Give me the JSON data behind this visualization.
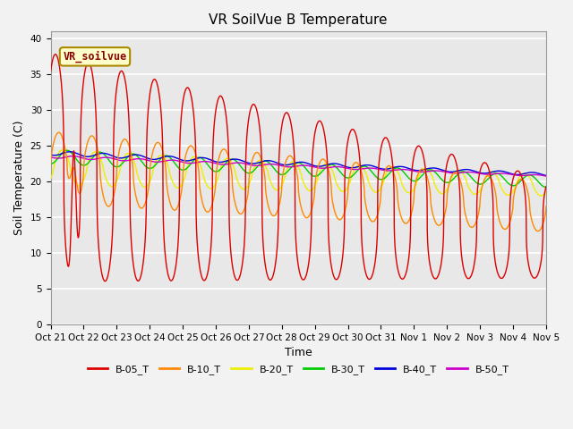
{
  "title": "VR SoilVue B Temperature",
  "xlabel": "Time",
  "ylabel": "Soil Temperature (C)",
  "ylim": [
    0,
    41
  ],
  "yticks": [
    0,
    5,
    10,
    15,
    20,
    25,
    30,
    35,
    40
  ],
  "xtick_labels": [
    "Oct 21",
    "Oct 22",
    "Oct 23",
    "Oct 24",
    "Oct 25",
    "Oct 26",
    "Oct 27",
    "Oct 28",
    "Oct 29",
    "Oct 30",
    "Oct 31",
    "Nov 1",
    "Nov 2",
    "Nov 3",
    "Nov 4",
    "Nov 5"
  ],
  "legend_labels": [
    "B-05_T",
    "B-10_T",
    "B-20_T",
    "B-30_T",
    "B-40_T",
    "B-50_T"
  ],
  "colors": [
    "#dd0000",
    "#ff8800",
    "#eeee00",
    "#00cc00",
    "#0000dd",
    "#cc00cc"
  ],
  "watermark": "VR_soilvue",
  "bg_color": "#e8e8e8",
  "grid_color": "#ffffff",
  "fig_bg": "#f2f2f2"
}
